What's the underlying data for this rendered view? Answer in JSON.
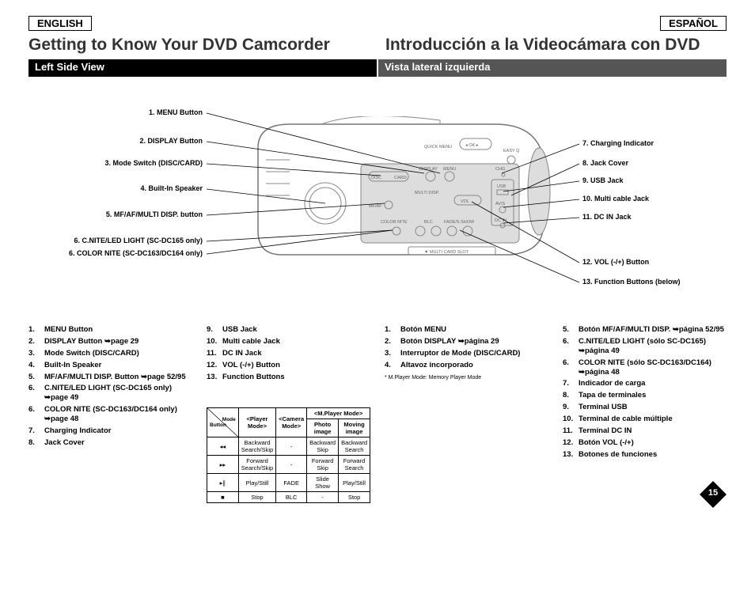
{
  "lang": {
    "left": "ENGLISH",
    "right": "ESPAÑOL"
  },
  "title": {
    "left": "Getting to Know Your DVD Camcorder",
    "right": "Introducción a la Videocámara con DVD"
  },
  "subtitle": {
    "left": "Left Side View",
    "right": "Vista lateral izquierda"
  },
  "callouts": {
    "c1": "1. MENU Button",
    "c2": "2. DISPLAY Button",
    "c3": "3. Mode Switch (DISC/CARD)",
    "c4": "4. Built-In Speaker",
    "c5": "5. MF/AF/MULTI DISP. button",
    "c6a": "6. C.NITE/LED LIGHT (SC-DC165 only)",
    "c6b": "6. COLOR NITE (SC-DC163/DC164 only)",
    "c7": "7. Charging Indicator",
    "c8": "8. Jack Cover",
    "c9": "9. USB Jack",
    "c10": "10. Multi cable Jack",
    "c11": "11. DC IN Jack",
    "c12": "12. VOL (-/+) Button",
    "c13": "13. Function Buttons (below)"
  },
  "list_en_a": [
    {
      "n": "1.",
      "t": "MENU Button"
    },
    {
      "n": "2.",
      "t": "DISPLAY Button ➥page 29"
    },
    {
      "n": "3.",
      "t": "Mode Switch (DISC/CARD)"
    },
    {
      "n": "4.",
      "t": "Built-In Speaker"
    },
    {
      "n": "5.",
      "t": "MF/AF/MULTI DISP. Button ➥page 52/95"
    },
    {
      "n": "6.",
      "t": "C.NITE/LED LIGHT (SC-DC165 only) ➥page 49"
    },
    {
      "n": "6.",
      "t": "COLOR NITE (SC-DC163/DC164 only) ➥page 48"
    },
    {
      "n": "7.",
      "t": "Charging Indicator"
    },
    {
      "n": "8.",
      "t": "Jack Cover"
    }
  ],
  "list_en_b": [
    {
      "n": "9.",
      "t": "USB Jack"
    },
    {
      "n": "10.",
      "t": "Multi cable Jack"
    },
    {
      "n": "11.",
      "t": "DC IN Jack"
    },
    {
      "n": "12.",
      "t": "VOL (-/+) Button"
    },
    {
      "n": "13.",
      "t": "Function Buttons"
    }
  ],
  "list_es_a": [
    {
      "n": "1.",
      "t": "Botón MENU"
    },
    {
      "n": "2.",
      "t": "Botón DISPLAY ➥página 29"
    },
    {
      "n": "3.",
      "t": "Interruptor de Mode (DISC/CARD)"
    },
    {
      "n": "4.",
      "t": "Altavoz incorporado"
    }
  ],
  "list_es_b": [
    {
      "n": "5.",
      "t": "Botón MF/AF/MULTI DISP. ➥página 52/95"
    },
    {
      "n": "6.",
      "t": "C.NITE/LED LIGHT (sólo SC-DC165) ➥página 49"
    },
    {
      "n": "6.",
      "t": "COLOR NITE (sólo SC-DC163/DC164) ➥página 48"
    },
    {
      "n": "7.",
      "t": "Indicador de carga"
    },
    {
      "n": "8.",
      "t": "Tapa de terminales"
    },
    {
      "n": "9.",
      "t": "Terminal USB"
    },
    {
      "n": "10.",
      "t": "Terminal de cable múltiple"
    },
    {
      "n": "11.",
      "t": "Terminal DC IN"
    },
    {
      "n": "12.",
      "t": "Botón VOL (-/+)"
    },
    {
      "n": "13.",
      "t": "Botones de funciones"
    }
  ],
  "mode_note": "* M.Player Mode: Memory Player Mode",
  "table": {
    "head_mode": "Mode",
    "head_button": "Button",
    "h_player": "<Player Mode>",
    "h_camera": "<Camera Mode>",
    "h_mplayer": "<M.Player Mode>",
    "sub_photo": "Photo image",
    "sub_moving": "Moving image",
    "rows": [
      {
        "b": "◂◂",
        "p": "Backward Search/Skip",
        "c": "-",
        "ph": "Backward Skip",
        "mv": "Backward Search"
      },
      {
        "b": "▸▸",
        "p": "Forward Search/Skip",
        "c": "-",
        "ph": "Forward Skip",
        "mv": "Forward Search"
      },
      {
        "b": "▸∥",
        "p": "Play/Still",
        "c": "FADE",
        "ph": "Slide Show",
        "mv": "Play/Still"
      },
      {
        "b": "■",
        "p": "Stop",
        "c": "BLC",
        "ph": "-",
        "mv": "Stop"
      }
    ]
  },
  "pagenum": "15",
  "cam_labels": {
    "quick": "QUICK MENU",
    "ok": "◂ OK ▸",
    "easy": "EASY Q",
    "chg": "CHG",
    "disc": "DISC",
    "card": "CARD",
    "display": "DISPLAY",
    "menu": "MENU",
    "usb": "USB",
    "multi": "MULTI DISP.",
    "mfaf": "MF/AF",
    "vol": "VOL",
    "av": "AV/S",
    "colornite": "COLOR NITE",
    "blc": "BLC",
    "fade": "FADE/S.SHOW",
    "dcin": "DC IN",
    "slot": "▼ MULTI CARD SLOT"
  }
}
